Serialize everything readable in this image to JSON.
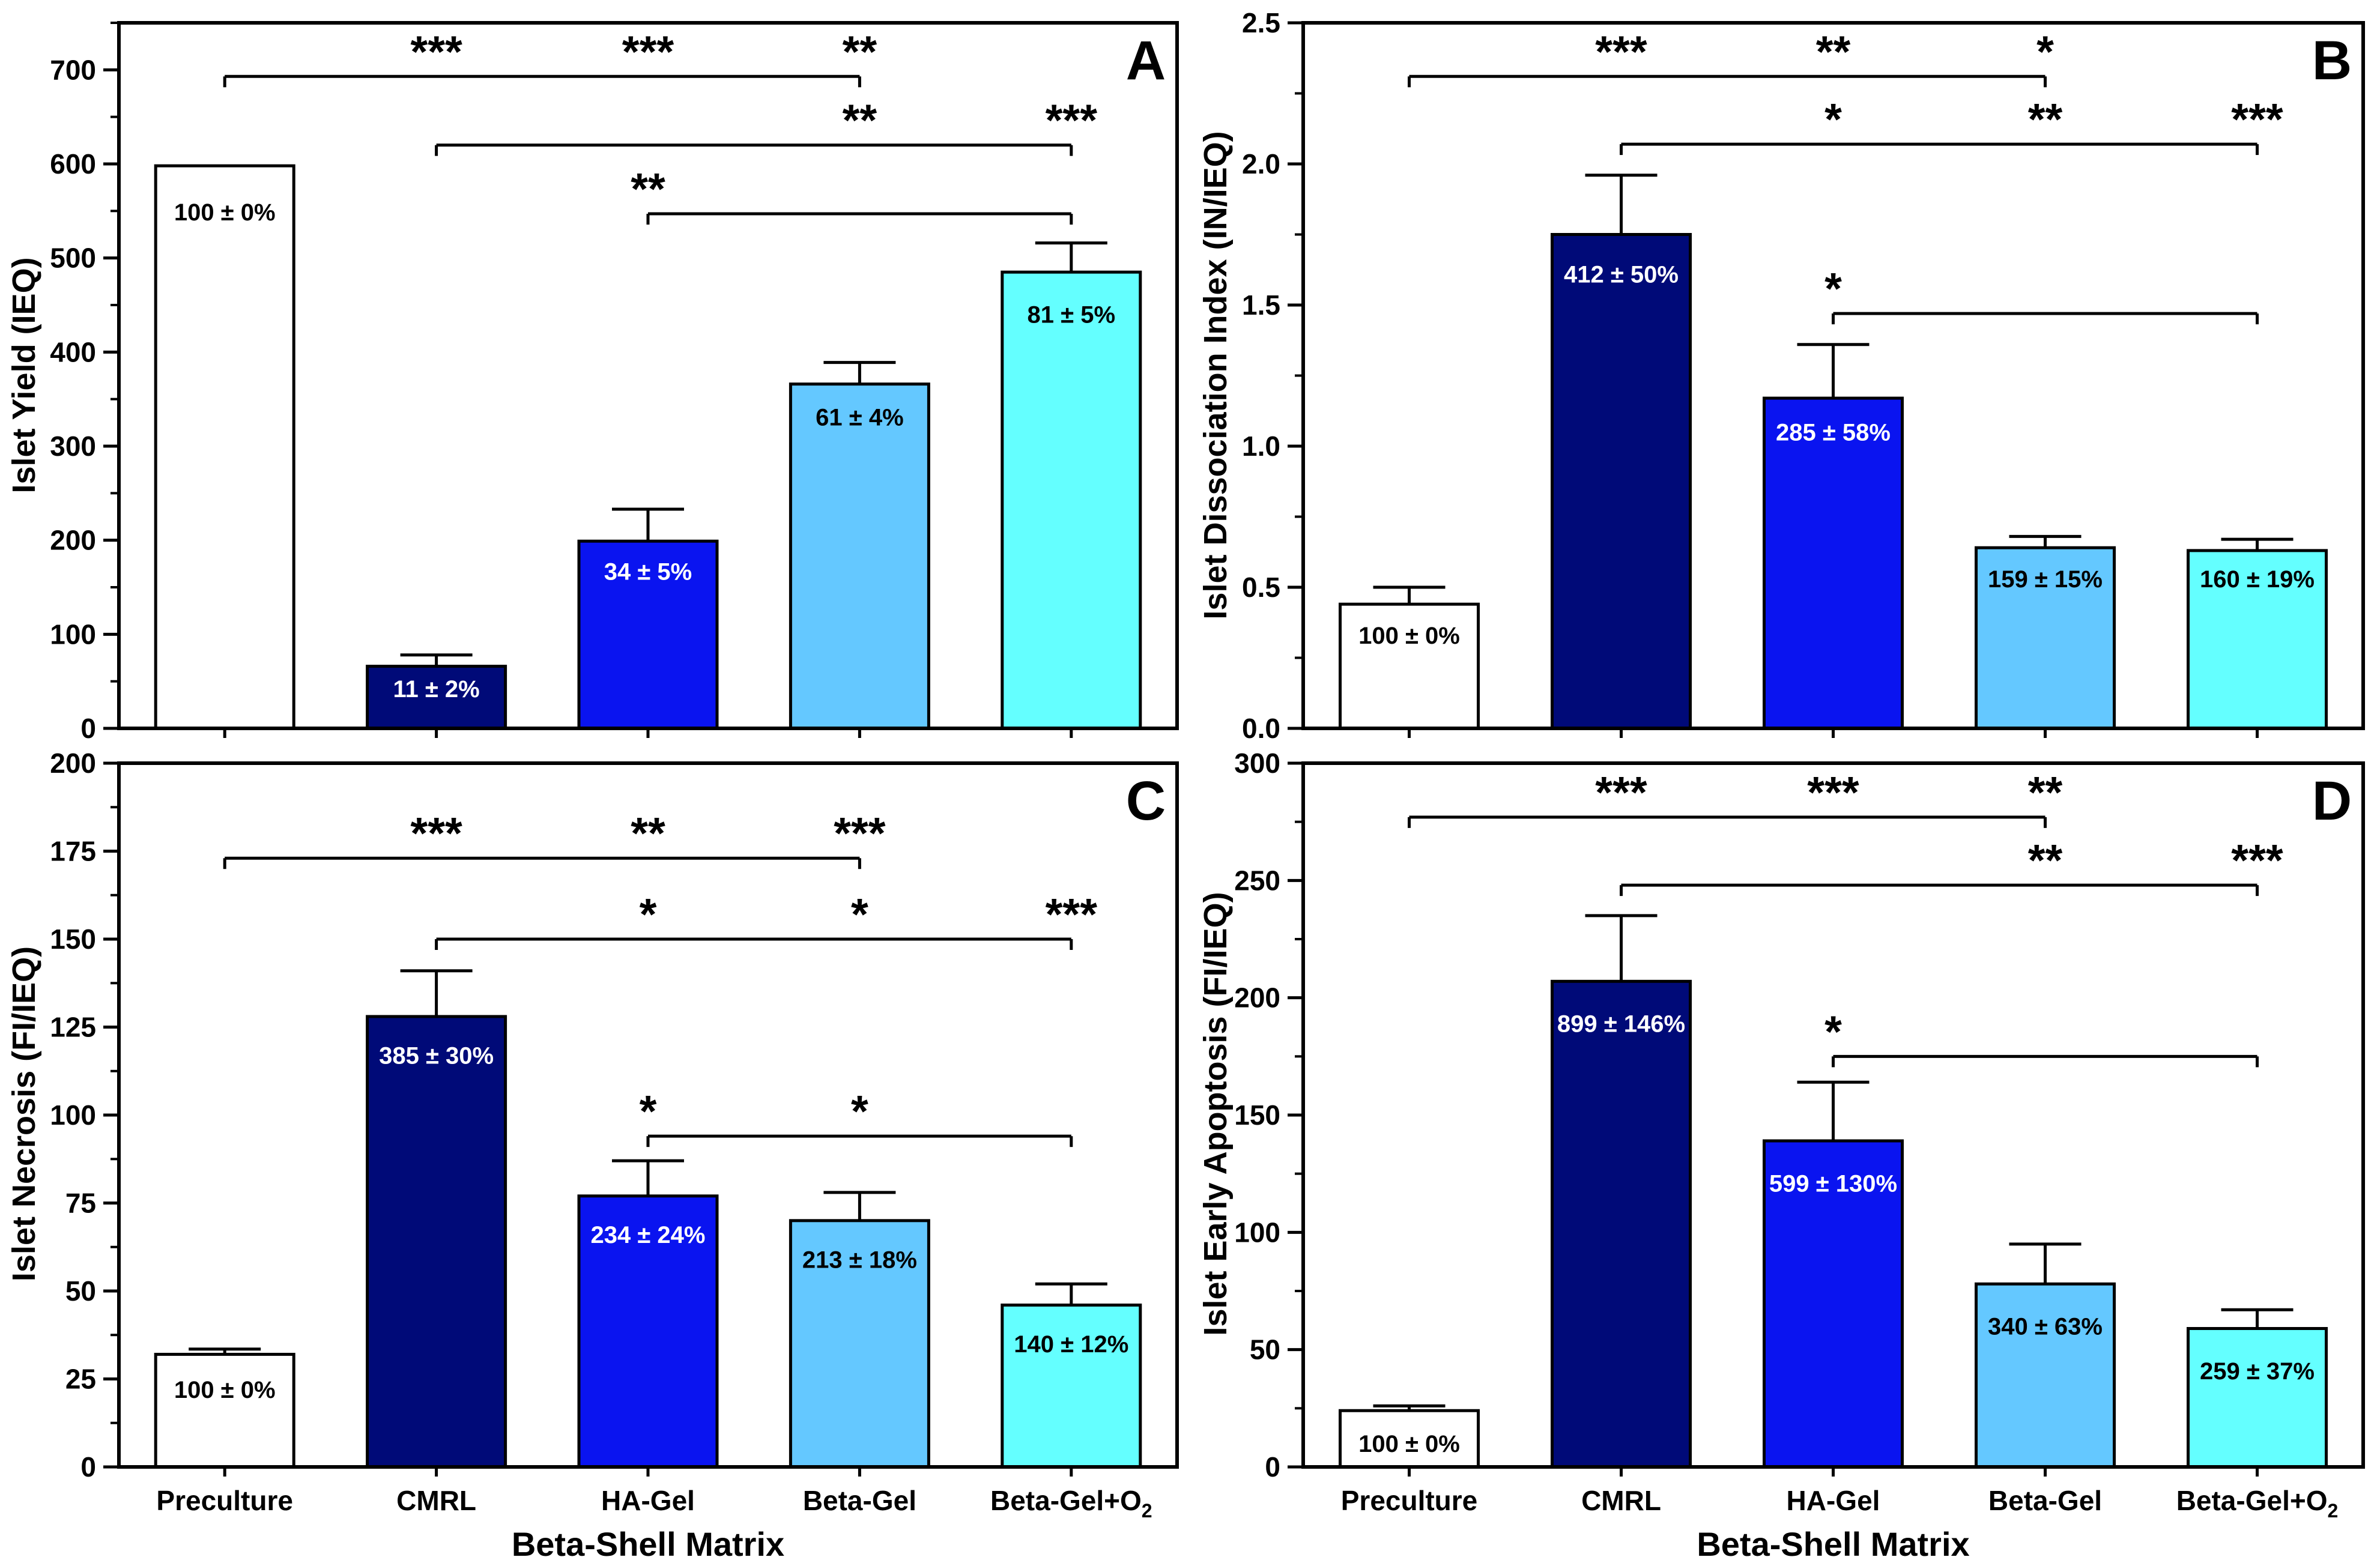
{
  "figure": {
    "shared_xlabel": "Beta-Shell Matrix",
    "categories": [
      "Preculture",
      "CMRL",
      "HA-Gel",
      "Beta-Gel",
      "Beta-Gel+O"
    ],
    "o2_subscript": "2",
    "bar_colors": [
      "#ffffff",
      "#000a78",
      "#0a14f0",
      "#64c8ff",
      "#64ffff"
    ],
    "pct_label_colors": [
      "#000000",
      "#ffffff",
      "#ffffff",
      "#000000",
      "#000000"
    ]
  },
  "chart_data": [
    {
      "type": "bar",
      "panel_letter": "A",
      "ylabel": "Islet Yield (IEQ)",
      "xlabel": "",
      "ylim": [
        0,
        750
      ],
      "yticks": [
        0,
        100,
        200,
        300,
        400,
        500,
        600,
        700
      ],
      "minor_step": 50,
      "categories": [
        "Preculture",
        "CMRL",
        "HA-Gel",
        "Beta-Gel",
        "Beta-Gel+O2"
      ],
      "values": [
        598,
        66,
        199,
        366,
        485
      ],
      "errors": [
        0,
        12,
        34,
        23,
        31
      ],
      "pct_labels": [
        "100 ± 0%",
        "11 ± 2%",
        "34 ± 5%",
        "61 ± 4%",
        "81 ± 5%"
      ],
      "pct_label_y": [
        549,
        42,
        167,
        331,
        440
      ],
      "brackets": [
        {
          "from": 0,
          "to": 3,
          "y": 693,
          "stars": [
            {
              "at": 1,
              "label": "***"
            },
            {
              "at": 2,
              "label": "***"
            },
            {
              "at": 3,
              "label": "**"
            }
          ]
        },
        {
          "from": 1,
          "to": 4,
          "y": 620,
          "stars": [
            {
              "at": 3,
              "label": "**"
            },
            {
              "at": 4,
              "label": "***"
            }
          ]
        },
        {
          "from": 2,
          "to": 4,
          "y": 547,
          "stars": [
            {
              "at": 2,
              "label": "**"
            }
          ]
        }
      ]
    },
    {
      "type": "bar",
      "panel_letter": "B",
      "ylabel": "Islet Dissociation Index (IN/IEQ)",
      "xlabel": "",
      "ylim": [
        0,
        2.5
      ],
      "yticks": [
        0.0,
        0.5,
        1.0,
        1.5,
        2.0,
        2.5
      ],
      "tick_decimals": 1,
      "minor_step": 0.25,
      "categories": [
        "Preculture",
        "CMRL",
        "HA-Gel",
        "Beta-Gel",
        "Beta-Gel+O2"
      ],
      "values": [
        0.44,
        1.75,
        1.17,
        0.64,
        0.63
      ],
      "errors": [
        0.06,
        0.21,
        0.19,
        0.04,
        0.04
      ],
      "pct_labels": [
        "100 ± 0%",
        "412 ± 50%",
        "285 ± 58%",
        "159 ± 15%",
        "160 ± 19%"
      ],
      "pct_label_y": [
        0.33,
        1.61,
        1.05,
        0.53,
        0.53
      ],
      "brackets": [
        {
          "from": 0,
          "to": 3,
          "y": 2.31,
          "stars": [
            {
              "at": 1,
              "label": "***"
            },
            {
              "at": 2,
              "label": "**"
            },
            {
              "at": 3,
              "label": "*"
            }
          ]
        },
        {
          "from": 1,
          "to": 4,
          "y": 2.07,
          "stars": [
            {
              "at": 2,
              "label": "*"
            },
            {
              "at": 3,
              "label": "**"
            },
            {
              "at": 4,
              "label": "***"
            }
          ]
        },
        {
          "from": 2,
          "to": 4,
          "y": 1.47,
          "stars": [
            {
              "at": 2,
              "label": "*"
            }
          ]
        }
      ]
    },
    {
      "type": "bar",
      "panel_letter": "C",
      "ylabel": "Islet Necrosis (FI/IEQ)",
      "xlabel": "",
      "ylim": [
        0,
        200
      ],
      "yticks": [
        0,
        25,
        50,
        75,
        100,
        125,
        150,
        175,
        200
      ],
      "minor_step": 12.5,
      "categories": [
        "Preculture",
        "CMRL",
        "HA-Gel",
        "Beta-Gel",
        "Beta-Gel+O2"
      ],
      "values": [
        32,
        128,
        77,
        70,
        46
      ],
      "errors": [
        1.5,
        13,
        10,
        8,
        6
      ],
      "pct_labels": [
        "100 ± 0%",
        "385 ± 30%",
        "234 ± 24%",
        "213 ± 18%",
        "140 ± 12%"
      ],
      "pct_label_y": [
        22,
        117,
        66,
        59,
        35
      ],
      "brackets": [
        {
          "from": 0,
          "to": 3,
          "y": 173,
          "stars": [
            {
              "at": 1,
              "label": "***"
            },
            {
              "at": 2,
              "label": "**"
            },
            {
              "at": 3,
              "label": "***"
            }
          ]
        },
        {
          "from": 1,
          "to": 4,
          "y": 150,
          "stars": [
            {
              "at": 2,
              "label": "*"
            },
            {
              "at": 3,
              "label": "*"
            },
            {
              "at": 4,
              "label": "***"
            }
          ]
        },
        {
          "from": 2,
          "to": 4,
          "y": 94,
          "stars": [
            {
              "at": 2,
              "label": "*"
            },
            {
              "at": 3,
              "label": "*"
            }
          ]
        }
      ]
    },
    {
      "type": "bar",
      "panel_letter": "D",
      "ylabel": "Islet Early Apoptosis (FI/IEQ)",
      "xlabel": "",
      "ylim": [
        0,
        300
      ],
      "yticks": [
        0,
        50,
        100,
        150,
        200,
        250,
        300
      ],
      "minor_step": 25,
      "categories": [
        "Preculture",
        "CMRL",
        "HA-Gel",
        "Beta-Gel",
        "Beta-Gel+O2"
      ],
      "values": [
        24,
        207,
        139,
        78,
        59
      ],
      "errors": [
        2,
        28,
        25,
        17,
        8
      ],
      "pct_labels": [
        "100 ± 0%",
        "899 ± 146%",
        "599 ± 130%",
        "340 ± 63%",
        "259 ± 37%"
      ],
      "pct_label_y": [
        10,
        189,
        121,
        60,
        41
      ],
      "brackets": [
        {
          "from": 0,
          "to": 3,
          "y": 277,
          "stars": [
            {
              "at": 1,
              "label": "***"
            },
            {
              "at": 2,
              "label": "***"
            },
            {
              "at": 3,
              "label": "**"
            }
          ]
        },
        {
          "from": 1,
          "to": 4,
          "y": 248,
          "stars": [
            {
              "at": 3,
              "label": "**"
            },
            {
              "at": 4,
              "label": "***"
            }
          ]
        },
        {
          "from": 2,
          "to": 4,
          "y": 175,
          "stars": [
            {
              "at": 2,
              "label": "*"
            }
          ]
        }
      ]
    }
  ]
}
